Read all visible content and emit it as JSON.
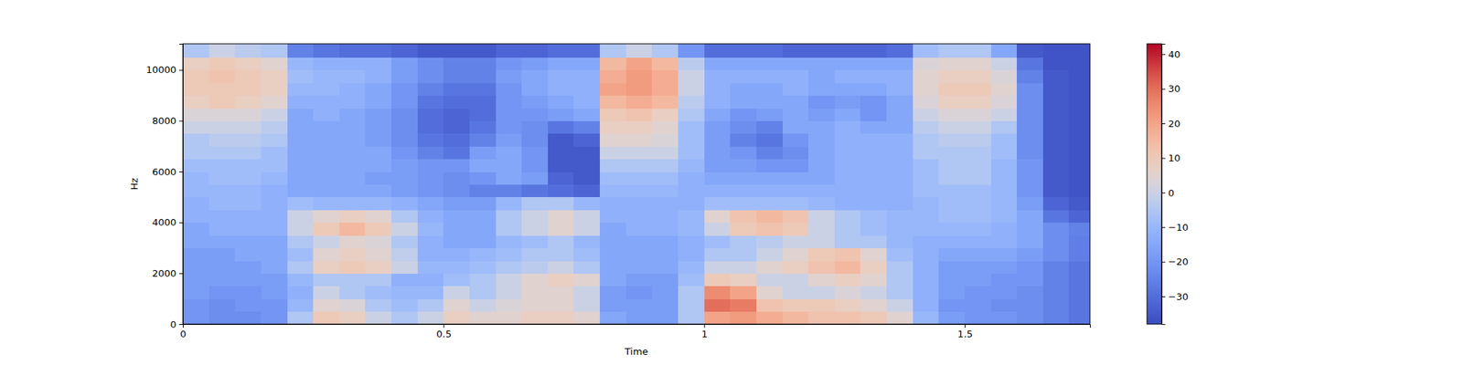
{
  "chart_data": {
    "type": "heatmap",
    "xlabel": "Time",
    "ylabel": "Hz",
    "xlim": [
      0,
      1.74
    ],
    "ylim": [
      0,
      11025
    ],
    "xticks": [
      0,
      0.5,
      1,
      1.5
    ],
    "yticks": [
      0,
      2000,
      4000,
      6000,
      8000,
      10000
    ],
    "x_edges": [
      0,
      0.05,
      0.1,
      0.15,
      0.2,
      0.25,
      0.3,
      0.35,
      0.4,
      0.45,
      0.5,
      0.55,
      0.6,
      0.65,
      0.7,
      0.75,
      0.8,
      0.85,
      0.9,
      0.95,
      1,
      1.05,
      1.1,
      1.15,
      1.2,
      1.25,
      1.3,
      1.35,
      1.4,
      1.45,
      1.5,
      1.55,
      1.6,
      1.65,
      1.7,
      1.75
    ],
    "y_edges": [
      0,
      500,
      1000,
      1500,
      2000,
      2500,
      3000,
      3500,
      4000,
      4500,
      5000,
      5500,
      6000,
      6500,
      7000,
      7500,
      8000,
      8500,
      9000,
      9500,
      10000,
      10500,
      11025
    ],
    "z": [
      [
        -20,
        -22,
        -22,
        -20,
        -5,
        10,
        8,
        0,
        -5,
        0,
        8,
        5,
        5,
        8,
        8,
        5,
        -15,
        -18,
        -18,
        -5,
        20,
        22,
        18,
        15,
        12,
        12,
        10,
        5,
        -10,
        -18,
        -20,
        -20,
        -22,
        -25,
        -28
      ],
      [
        -20,
        -22,
        -20,
        -20,
        -10,
        5,
        3,
        -5,
        -8,
        -5,
        5,
        0,
        3,
        5,
        5,
        0,
        -18,
        -18,
        -18,
        -5,
        30,
        28,
        12,
        10,
        10,
        8,
        5,
        0,
        -12,
        -20,
        -20,
        -22,
        -22,
        -25,
        -28
      ],
      [
        -18,
        -20,
        -20,
        -18,
        -12,
        0,
        -5,
        -8,
        -10,
        -10,
        0,
        -5,
        0,
        5,
        5,
        0,
        -18,
        -20,
        -18,
        -5,
        25,
        20,
        5,
        0,
        0,
        3,
        0,
        -5,
        -12,
        -18,
        -20,
        -20,
        -22,
        -25,
        -28
      ],
      [
        -18,
        -18,
        -18,
        -18,
        -10,
        -5,
        -5,
        -5,
        -12,
        -12,
        -8,
        -5,
        0,
        5,
        8,
        5,
        -15,
        -18,
        -18,
        -8,
        10,
        8,
        0,
        0,
        5,
        8,
        5,
        -5,
        -12,
        -18,
        -18,
        -20,
        -20,
        -25,
        -28
      ],
      [
        -18,
        -18,
        -18,
        -15,
        -5,
        8,
        10,
        8,
        0,
        -10,
        -10,
        -8,
        -5,
        -3,
        0,
        -5,
        -15,
        -15,
        -15,
        -10,
        0,
        0,
        5,
        8,
        12,
        15,
        8,
        -5,
        -12,
        -18,
        -18,
        -18,
        -20,
        -25,
        -28
      ],
      [
        -18,
        -18,
        -15,
        -15,
        -8,
        5,
        8,
        5,
        -2,
        -12,
        -12,
        -10,
        -8,
        -5,
        -5,
        -8,
        -15,
        -15,
        -15,
        -12,
        -5,
        -5,
        0,
        5,
        10,
        12,
        5,
        -8,
        -12,
        -15,
        -15,
        -15,
        -18,
        -22,
        -26
      ],
      [
        -15,
        -15,
        -15,
        -15,
        -5,
        0,
        5,
        3,
        -5,
        -12,
        -15,
        -15,
        -10,
        -8,
        -5,
        -10,
        -15,
        -15,
        -15,
        -12,
        -8,
        -5,
        -3,
        0,
        0,
        -5,
        -5,
        -10,
        -12,
        -12,
        -12,
        -12,
        -15,
        -22,
        -26
      ],
      [
        -15,
        -12,
        -12,
        -12,
        0,
        10,
        15,
        10,
        0,
        -10,
        -15,
        -15,
        -5,
        0,
        5,
        0,
        -15,
        -12,
        -12,
        -10,
        0,
        10,
        12,
        10,
        0,
        -5,
        -8,
        -10,
        -10,
        -10,
        -10,
        -12,
        -15,
        -22,
        -25
      ],
      [
        -12,
        -12,
        -12,
        -12,
        0,
        5,
        8,
        5,
        -5,
        -12,
        -15,
        -15,
        -5,
        0,
        5,
        0,
        -12,
        -12,
        -12,
        -10,
        5,
        12,
        15,
        12,
        0,
        -5,
        -8,
        -10,
        -10,
        -8,
        -8,
        -10,
        -15,
        -28,
        -32
      ],
      [
        -12,
        -10,
        -10,
        -12,
        -8,
        -10,
        -10,
        -10,
        -12,
        -15,
        -18,
        -18,
        -10,
        -5,
        -5,
        -10,
        -12,
        -12,
        -12,
        -12,
        -8,
        -8,
        -8,
        -8,
        -10,
        -12,
        -12,
        -12,
        -10,
        -8,
        -8,
        -10,
        -18,
        -32,
        -35
      ],
      [
        -10,
        -10,
        -10,
        -12,
        -15,
        -15,
        -15,
        -15,
        -18,
        -20,
        -22,
        -25,
        -25,
        -28,
        -30,
        -32,
        -10,
        -10,
        -10,
        -12,
        -12,
        -12,
        -12,
        -12,
        -12,
        -12,
        -12,
        -12,
        -8,
        -8,
        -8,
        -10,
        -20,
        -35,
        -36
      ],
      [
        -10,
        -8,
        -8,
        -10,
        -15,
        -15,
        -15,
        -18,
        -18,
        -20,
        -22,
        -20,
        -15,
        -18,
        -32,
        -35,
        -8,
        -8,
        -8,
        -12,
        -15,
        -15,
        -15,
        -15,
        -15,
        -12,
        -12,
        -12,
        -8,
        -5,
        -5,
        -10,
        -20,
        -35,
        -36
      ],
      [
        -8,
        -8,
        -8,
        -8,
        -15,
        -15,
        -15,
        -15,
        -18,
        -20,
        -20,
        -15,
        -15,
        -20,
        -35,
        -35,
        -5,
        -5,
        -5,
        -10,
        -18,
        -18,
        -20,
        -20,
        -15,
        -12,
        -12,
        -12,
        -8,
        -5,
        -5,
        -10,
        -20,
        -35,
        -36
      ],
      [
        -5,
        -5,
        -5,
        -8,
        -15,
        -15,
        -15,
        -15,
        -20,
        -25,
        -28,
        -18,
        -15,
        -20,
        -35,
        -35,
        0,
        0,
        0,
        -8,
        -18,
        -20,
        -25,
        -22,
        -15,
        -12,
        -12,
        -12,
        -5,
        -5,
        -5,
        -8,
        -22,
        -35,
        -36
      ],
      [
        -5,
        -3,
        -3,
        -5,
        -15,
        -15,
        -15,
        -18,
        -22,
        -28,
        -30,
        -25,
        -18,
        -22,
        -35,
        -32,
        5,
        5,
        3,
        -8,
        -18,
        -25,
        -28,
        -20,
        -15,
        -12,
        -12,
        -12,
        -5,
        -3,
        -3,
        -8,
        -22,
        -35,
        -36
      ],
      [
        0,
        0,
        0,
        -3,
        -15,
        -15,
        -15,
        -18,
        -22,
        -30,
        -32,
        -28,
        -20,
        -22,
        -28,
        -25,
        8,
        8,
        5,
        -8,
        -18,
        -22,
        -25,
        -15,
        -15,
        -12,
        -15,
        -15,
        -3,
        0,
        0,
        -5,
        -22,
        -35,
        -36
      ],
      [
        3,
        3,
        3,
        0,
        -15,
        -12,
        -15,
        -18,
        -22,
        -30,
        -32,
        -30,
        -20,
        -20,
        -18,
        -15,
        10,
        12,
        8,
        -5,
        -15,
        -20,
        -18,
        -15,
        -18,
        -15,
        -20,
        -15,
        0,
        3,
        3,
        0,
        -22,
        -35,
        -36
      ],
      [
        8,
        10,
        8,
        5,
        -12,
        -12,
        -12,
        -15,
        -20,
        -28,
        -30,
        -30,
        -20,
        -18,
        -15,
        -12,
        15,
        18,
        15,
        -3,
        -12,
        -15,
        -15,
        -15,
        -20,
        -18,
        -20,
        -15,
        3,
        8,
        8,
        3,
        -22,
        -35,
        -36
      ],
      [
        10,
        10,
        10,
        8,
        -10,
        -10,
        -12,
        -15,
        -20,
        -25,
        -28,
        -28,
        -20,
        -15,
        -12,
        -12,
        20,
        22,
        18,
        0,
        -12,
        -15,
        -15,
        -12,
        -15,
        -15,
        -15,
        -12,
        5,
        10,
        10,
        5,
        -22,
        -35,
        -36
      ],
      [
        10,
        12,
        10,
        8,
        -8,
        -10,
        -10,
        -12,
        -18,
        -22,
        -25,
        -25,
        -18,
        -15,
        -12,
        -12,
        18,
        22,
        18,
        0,
        -12,
        -12,
        -12,
        -12,
        -15,
        -12,
        -12,
        -12,
        5,
        8,
        8,
        3,
        -25,
        -35,
        -36
      ],
      [
        8,
        10,
        8,
        5,
        -10,
        -12,
        -12,
        -12,
        -18,
        -22,
        -25,
        -25,
        -20,
        -18,
        -15,
        -15,
        15,
        20,
        15,
        -3,
        -15,
        -15,
        -15,
        -15,
        -15,
        -15,
        -15,
        -15,
        3,
        5,
        5,
        0,
        -28,
        -36,
        -36
      ],
      [
        -5,
        0,
        -3,
        -5,
        -25,
        -28,
        -30,
        -30,
        -32,
        -35,
        -35,
        -35,
        -32,
        -32,
        -30,
        -30,
        -5,
        0,
        -5,
        -20,
        -30,
        -30,
        -30,
        -32,
        -32,
        -32,
        -32,
        -30,
        -8,
        -5,
        -5,
        -15,
        -35,
        -36,
        -36
      ]
    ],
    "colorbar": {
      "range": [
        -38,
        43
      ],
      "ticks": [
        {
          "value": -30,
          "label": "−30"
        },
        {
          "value": -20,
          "label": "−20"
        },
        {
          "value": -10,
          "label": "−10"
        },
        0,
        10,
        20,
        30,
        40
      ]
    }
  }
}
